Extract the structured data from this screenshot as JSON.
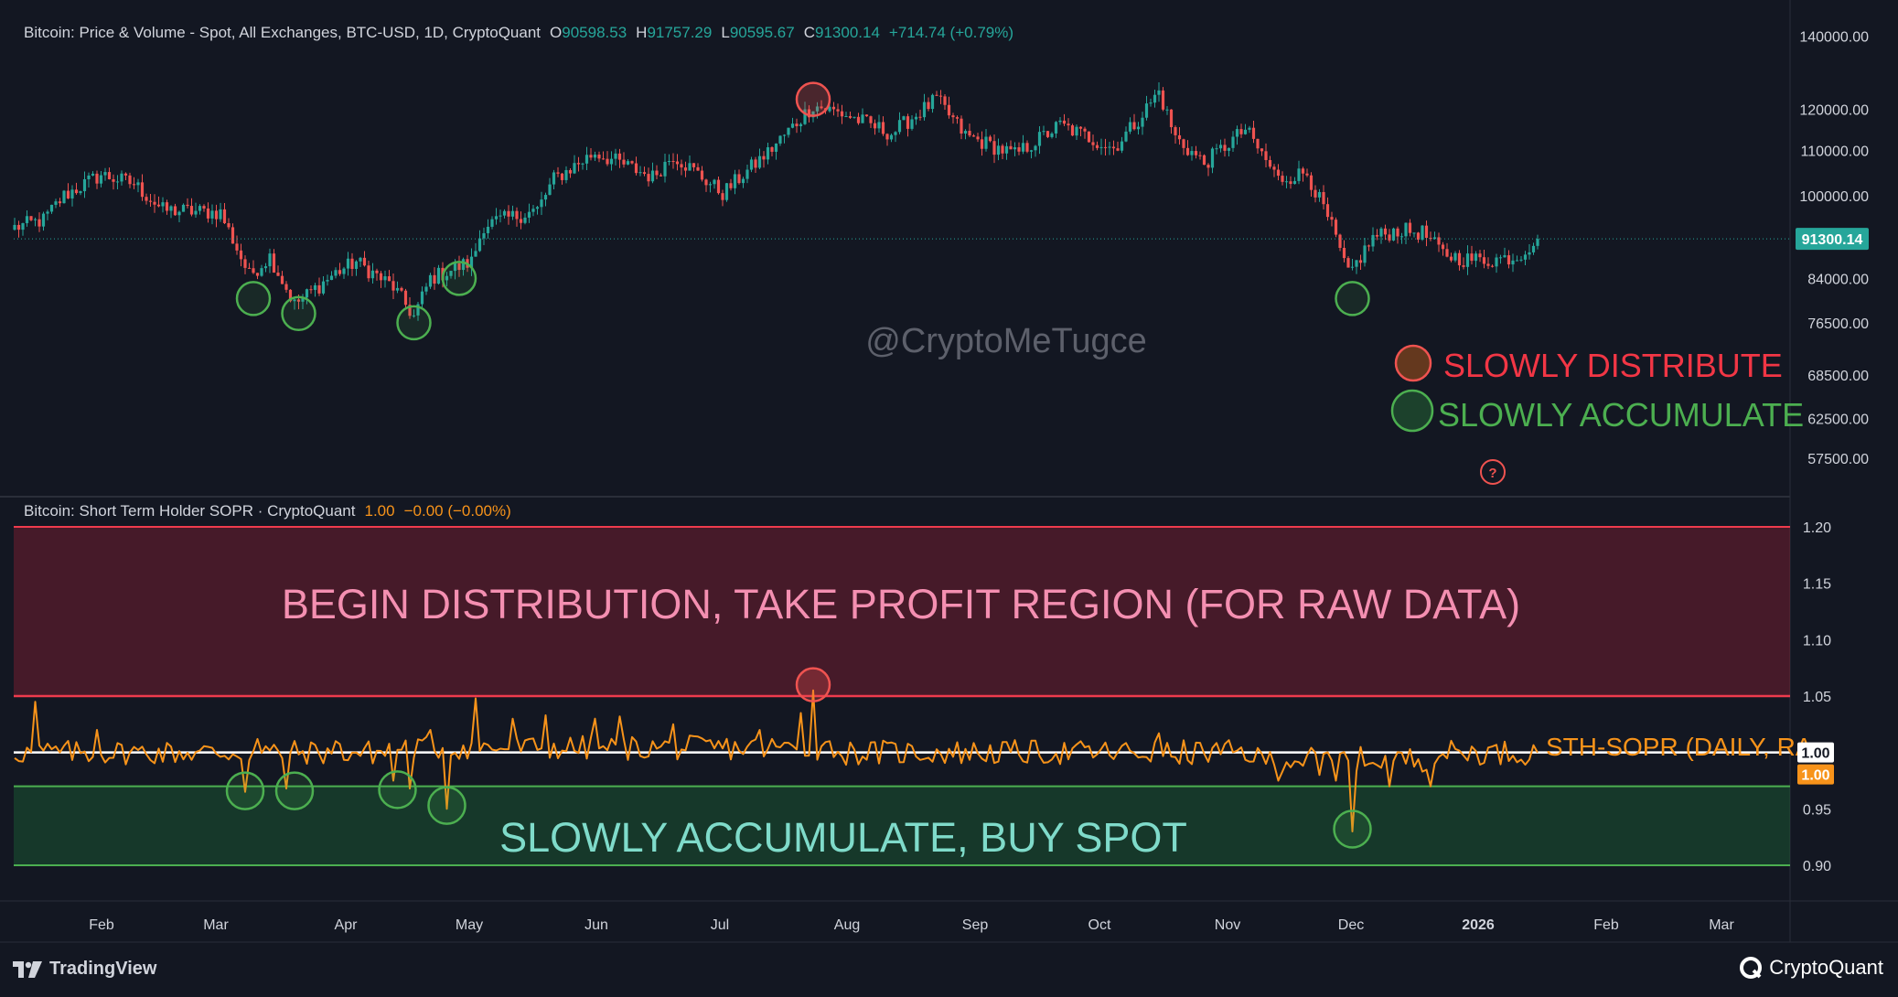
{
  "header": {
    "price_legend": {
      "title": "Bitcoin: Price & Volume - Spot, All Exchanges, BTC-USD, 1D, CryptoQuant",
      "open_label": "O",
      "open": "90598.53",
      "high_label": "H",
      "high": "91757.29",
      "low_label": "L",
      "low": "90595.67",
      "close_label": "C",
      "close": "91300.14",
      "change": "+714.74 (+0.79%)"
    },
    "sopr_legend": {
      "title": "Bitcoin: Short Term Holder SOPR · CryptoQuant",
      "value": "1.00",
      "change": "−0.00 (−0.00%)"
    }
  },
  "watermark": "@CryptoMeTugce",
  "annotations": {
    "distribute": "SLOWLY DISTRIBUTE",
    "accumulate": "SLOWLY ACCUMULATE",
    "distribution_region": "BEGIN DISTRIBUTION, TAKE PROFIT REGION (FOR RAW DATA)",
    "accumulate_region": "SLOWLY ACCUMULATE, BUY SPOT",
    "sopr_series_label": "STH-SOPR (DAILY, RA",
    "question_mark": "?"
  },
  "colors": {
    "background": "#131722",
    "up": "#26a69a",
    "down": "#ef5350",
    "sopr_line": "#f7931a",
    "red_zone": "#ef3b4d",
    "green_zone": "#4caf50"
  },
  "footer": {
    "left_brand": "TradingView",
    "right_brand": "CryptoQuant"
  },
  "chart_data": [
    {
      "type": "candlestick",
      "name": "BTC-USD",
      "y_scale": "log",
      "ylim": [
        54000,
        145000
      ],
      "y_ticks": [
        140000,
        120000,
        110000,
        100000,
        84000,
        76500,
        68500,
        62500,
        57500
      ],
      "y_tick_labels": [
        "140000.00",
        "120000.00",
        "110000.00",
        "100000.00",
        "84000.00",
        "76500.00",
        "68500.00",
        "62500.00",
        "57500.00"
      ],
      "last_price": 91300.14,
      "last_price_label": "91300.14",
      "x_tick_labels": [
        "Feb",
        "Mar",
        "Apr",
        "May",
        "Jun",
        "Jul",
        "Aug",
        "Sep",
        "Oct",
        "Nov",
        "Dec",
        "2026",
        "Feb",
        "Mar"
      ],
      "anchors": [
        [
          "2025-01-01",
          93500
        ],
        [
          "2025-01-08",
          95000
        ],
        [
          "2025-01-13",
          100000
        ],
        [
          "2025-01-22",
          104500
        ],
        [
          "2025-01-30",
          102500
        ],
        [
          "2025-02-06",
          97000
        ],
        [
          "2025-02-20",
          96500
        ],
        [
          "2025-02-27",
          84500
        ],
        [
          "2025-03-04",
          88000
        ],
        [
          "2025-03-10",
          79500
        ],
        [
          "2025-03-20",
          85000
        ],
        [
          "2025-03-25",
          87000
        ],
        [
          "2025-04-03",
          82500
        ],
        [
          "2025-04-08",
          77500
        ],
        [
          "2025-04-12",
          84000
        ],
        [
          "2025-04-22",
          87000
        ],
        [
          "2025-04-25",
          94000
        ],
        [
          "2025-05-08",
          97000
        ],
        [
          "2025-05-12",
          103500
        ],
        [
          "2025-05-22",
          109500
        ],
        [
          "2025-06-05",
          104000
        ],
        [
          "2025-06-10",
          109000
        ],
        [
          "2025-06-22",
          100500
        ],
        [
          "2025-07-03",
          109500
        ],
        [
          "2025-07-14",
          121000
        ],
        [
          "2025-07-22",
          118500
        ],
        [
          "2025-08-02",
          114000
        ],
        [
          "2025-08-13",
          122500
        ],
        [
          "2025-08-20",
          113500
        ],
        [
          "2025-09-01",
          109000
        ],
        [
          "2025-09-12",
          116000
        ],
        [
          "2025-09-25",
          110500
        ],
        [
          "2025-10-01",
          117500
        ],
        [
          "2025-10-06",
          124500
        ],
        [
          "2025-10-10",
          113000
        ],
        [
          "2025-10-17",
          107000
        ],
        [
          "2025-10-27",
          115000
        ],
        [
          "2025-11-04",
          103500
        ],
        [
          "2025-11-11",
          105000
        ],
        [
          "2025-11-17",
          93500
        ],
        [
          "2025-11-21",
          84500
        ],
        [
          "2025-11-27",
          91500
        ],
        [
          "2025-12-03",
          93000
        ],
        [
          "2025-12-09",
          92500
        ],
        [
          "2025-12-14",
          88500
        ],
        [
          "2025-12-19",
          87500
        ],
        [
          "2025-12-25",
          87300
        ],
        [
          "2026-01-01",
          88000
        ],
        [
          "2026-01-06",
          91300
        ]
      ],
      "markers": [
        {
          "date": "2025-02-28",
          "price": 80500,
          "kind": "accumulate"
        },
        {
          "date": "2025-03-11",
          "price": 78000,
          "kind": "accumulate"
        },
        {
          "date": "2025-04-08",
          "price": 76500,
          "kind": "accumulate"
        },
        {
          "date": "2025-04-19",
          "price": 84000,
          "kind": "accumulate"
        },
        {
          "date": "2025-07-14",
          "price": 122500,
          "kind": "distribute"
        },
        {
          "date": "2025-11-22",
          "price": 80500,
          "kind": "accumulate"
        }
      ]
    },
    {
      "type": "line",
      "name": "STH-SOPR",
      "ylim": [
        0.865,
        1.225
      ],
      "y_ticks": [
        1.2,
        1.15,
        1.1,
        1.05,
        0.95,
        0.9
      ],
      "y_tick_labels": [
        "1.20",
        "1.15",
        "1.10",
        "1.05",
        "0.95",
        "0.90"
      ],
      "last_value": 1.0,
      "last_value_labels": [
        "1.00",
        "1.00"
      ],
      "bands": {
        "distribution": [
          1.05,
          1.2
        ],
        "accumulation": [
          0.9,
          0.97
        ],
        "baseline": 1.0
      },
      "spikes": [
        [
          "2025-01-06",
          1.045
        ],
        [
          "2025-01-21",
          1.02
        ],
        [
          "2025-02-26",
          0.965
        ],
        [
          "2025-03-01",
          1.012
        ],
        [
          "2025-03-08",
          0.968
        ],
        [
          "2025-03-20",
          1.01
        ],
        [
          "2025-04-03",
          0.975
        ],
        [
          "2025-04-07",
          0.968
        ],
        [
          "2025-04-12",
          1.02
        ],
        [
          "2025-04-16",
          0.95
        ],
        [
          "2025-04-23",
          1.048
        ],
        [
          "2025-05-02",
          1.03
        ],
        [
          "2025-05-10",
          1.033
        ],
        [
          "2025-05-22",
          1.03
        ],
        [
          "2025-05-28",
          1.032
        ],
        [
          "2025-06-10",
          1.025
        ],
        [
          "2025-07-01",
          1.02
        ],
        [
          "2025-07-11",
          1.035
        ],
        [
          "2025-07-14",
          1.055
        ],
        [
          "2025-07-18",
          1.01
        ],
        [
          "2025-10-06",
          1.017
        ],
        [
          "2025-10-11",
          0.99
        ],
        [
          "2025-11-04",
          0.975
        ],
        [
          "2025-11-14",
          0.98
        ],
        [
          "2025-11-18",
          0.975
        ],
        [
          "2025-11-22",
          0.93
        ],
        [
          "2025-11-26",
          0.99
        ],
        [
          "2025-12-01",
          0.97
        ],
        [
          "2025-12-11",
          0.97
        ]
      ],
      "markers": [
        {
          "date": "2025-02-26",
          "value": 0.966,
          "kind": "accumulate"
        },
        {
          "date": "2025-03-10",
          "value": 0.966,
          "kind": "accumulate"
        },
        {
          "date": "2025-04-04",
          "value": 0.967,
          "kind": "accumulate"
        },
        {
          "date": "2025-04-16",
          "value": 0.953,
          "kind": "accumulate"
        },
        {
          "date": "2025-07-14",
          "value": 1.06,
          "kind": "distribute"
        },
        {
          "date": "2025-11-22",
          "value": 0.932,
          "kind": "accumulate"
        }
      ]
    }
  ]
}
